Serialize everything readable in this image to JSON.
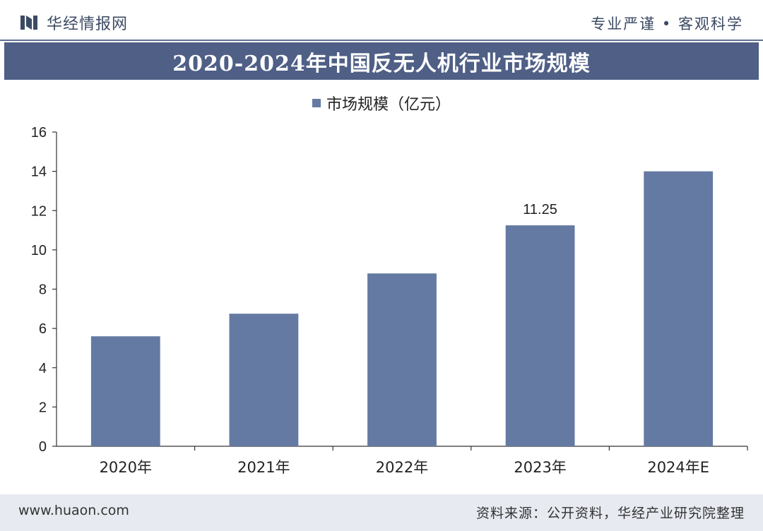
{
  "header": {
    "brand_name": "华经情报网",
    "slogan_left": "专业严谨",
    "slogan_right": "客观科学",
    "bullet": "•"
  },
  "chart_data": {
    "type": "bar",
    "title": "2020-2024年中国反无人机行业市场规模",
    "categories": [
      "2020年",
      "2021年",
      "2022年",
      "2023年",
      "2024年E"
    ],
    "series": [
      {
        "name": "市场规模（亿元）",
        "values": [
          5.6,
          6.75,
          8.8,
          11.25,
          14.0
        ],
        "color": "#647aa3"
      }
    ],
    "data_labels": {
      "2023年": "11.25"
    },
    "ylim": [
      0,
      16
    ],
    "yticks": [
      0,
      2,
      4,
      6,
      8,
      10,
      12,
      14,
      16
    ],
    "xlabel": "",
    "ylabel": "",
    "legend_position": "top-center",
    "grid": false
  },
  "footer": {
    "website": "www.huaon.com",
    "source": "资料来源：公开资料，华经产业研究院整理"
  },
  "colors": {
    "banner": "#4f5f86",
    "bar": "#647aa3",
    "footer_bg": "#e7eaf0",
    "brand_text": "#3b4a63"
  }
}
